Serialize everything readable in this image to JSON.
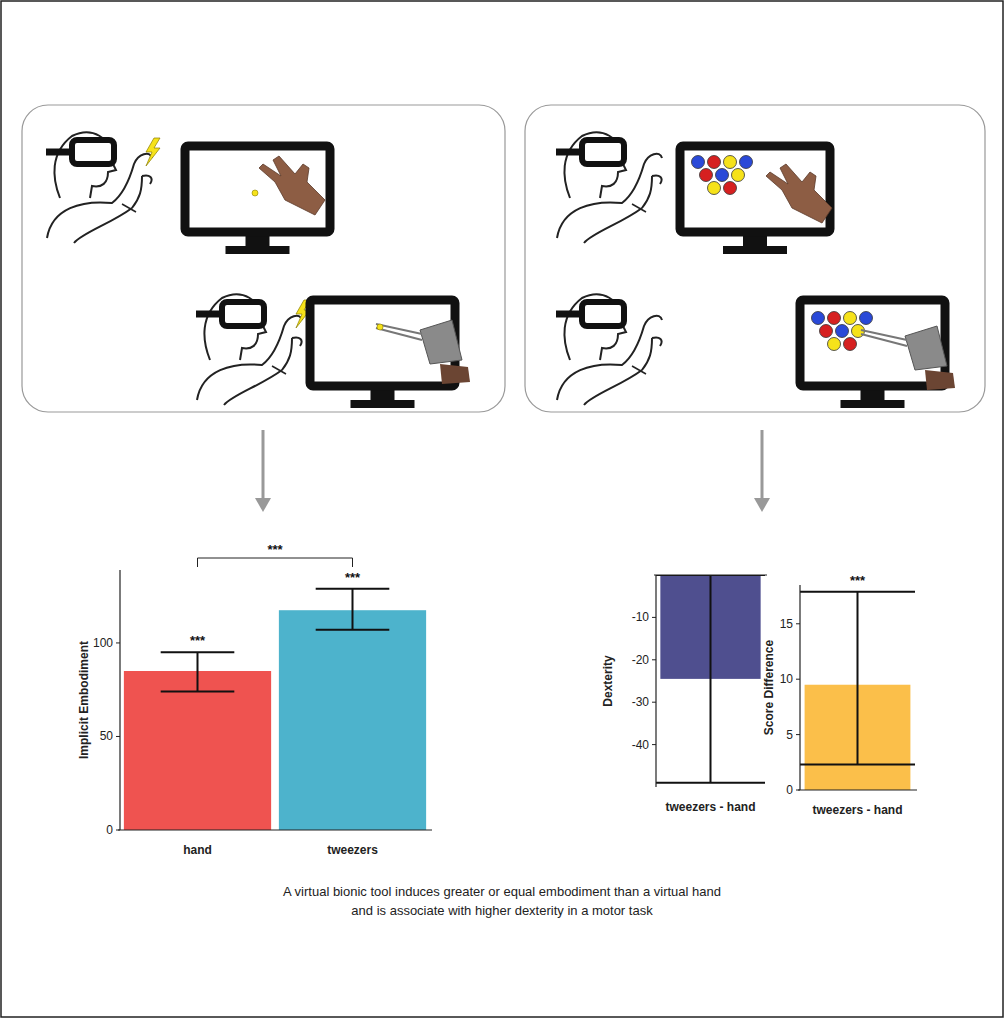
{
  "chart_data": [
    {
      "type": "bar",
      "categories": [
        "hand",
        "tweezers"
      ],
      "values": [
        85,
        117.5
      ],
      "error_low": [
        74,
        107
      ],
      "error_high": [
        95,
        129
      ],
      "colors": [
        "#ef5350",
        "#4db3cc"
      ],
      "y_label": "Implicit Embodiment",
      "ylim": [
        0,
        139
      ],
      "yticks": [
        0,
        50,
        100
      ],
      "significance": [
        "***",
        "***"
      ],
      "comparison": {
        "label": "***",
        "between": [
          "hand",
          "tweezers"
        ]
      }
    },
    {
      "type": "bar",
      "categories": [
        "tweezers - hand"
      ],
      "values": [
        -24.5
      ],
      "error_low": [
        -49
      ],
      "error_high": [
        0
      ],
      "color": "#4f4f8f",
      "y_label": "Dexterity",
      "ylim": [
        -50,
        0
      ],
      "yticks": [
        -40,
        -30,
        -20,
        -10
      ]
    },
    {
      "type": "bar",
      "categories": [
        "tweezers - hand"
      ],
      "values": [
        9.5
      ],
      "error_low": [
        2.3
      ],
      "error_high": [
        17.9
      ],
      "color": "#fbbf4a",
      "y_label": "Score Difference",
      "ylim": [
        0,
        18.5
      ],
      "yticks": [
        0,
        5,
        10,
        15
      ],
      "significance": [
        "***"
      ]
    }
  ],
  "caption": [
    "A virtual bionic tool induces greater or equal embodiment than a virtual hand",
    "and is associate with higher dexterity in a motor task"
  ]
}
